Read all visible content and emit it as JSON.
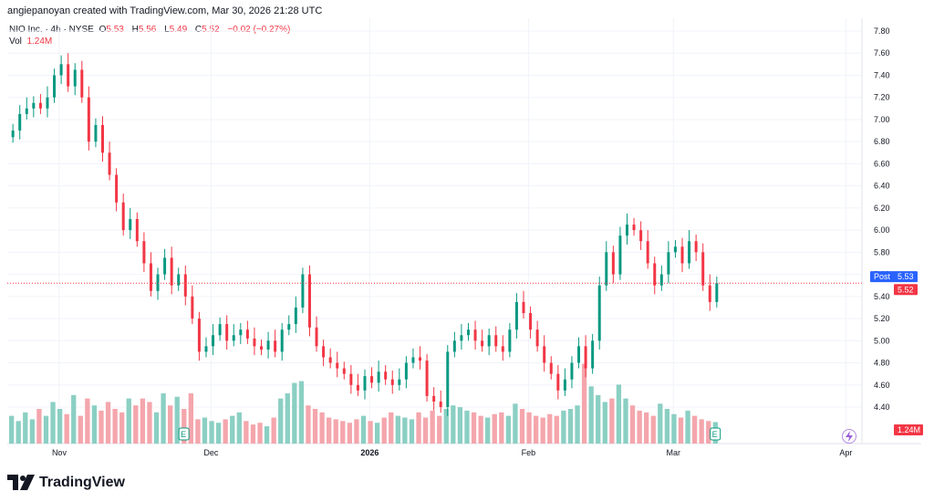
{
  "header": {
    "credit": "angiepanoyan created with TradingView.com, Mar 30, 2026 21:28 UTC"
  },
  "legend": {
    "symbol": "NIO Inc. · 4h · NYSE",
    "open_label": "O",
    "open": "5.53",
    "high_label": "H",
    "high": "5.56",
    "low_label": "L",
    "low": "5.49",
    "close_label": "C",
    "close": "5.52",
    "change": "−0.02 (−0.27%)",
    "vol_label": "Vol",
    "vol": "1.24M"
  },
  "brand": {
    "name": "TradingView"
  },
  "markers": {
    "earnings_label": "E"
  },
  "colors": {
    "up": "#089981",
    "down": "#f23645",
    "up_vol": "#8bcfc3",
    "down_vol": "#f4a6ac",
    "post": "#2962ff",
    "grid": "#f0f3fa",
    "text": "#131722"
  },
  "chart_data": {
    "type": "candlestick",
    "title": "NIO Inc. · 4h · NYSE",
    "y_ticks": [
      "7.80",
      "7.60",
      "7.40",
      "7.20",
      "7.00",
      "6.80",
      "6.60",
      "6.40",
      "6.20",
      "6.00",
      "5.80",
      "5.60",
      "5.40",
      "5.20",
      "5.00",
      "4.80",
      "4.60",
      "4.40"
    ],
    "x_labels": [
      {
        "label": "Nov",
        "i": 7
      },
      {
        "label": "Dec",
        "i": 29
      },
      {
        "label": "2026",
        "i": 52
      },
      {
        "label": "Feb",
        "i": 75
      },
      {
        "label": "Mar",
        "i": 96
      },
      {
        "label": "Apr",
        "i": 121
      }
    ],
    "ylim": [
      4.2,
      7.9
    ],
    "price_labels": [
      {
        "label": "Post",
        "value": "5.53",
        "color": "#2962ff"
      },
      {
        "label": "",
        "value": "5.52",
        "color": "#f23645"
      }
    ],
    "volume_label": "1.24M",
    "earnings_markers": [
      25,
      102
    ],
    "closes": [
      6.9,
      7.05,
      7.1,
      7.15,
      7.1,
      7.2,
      7.4,
      7.5,
      7.3,
      7.45,
      7.2,
      6.8,
      6.95,
      6.7,
      6.5,
      6.25,
      6.0,
      6.1,
      5.9,
      5.7,
      5.45,
      5.6,
      5.75,
      5.5,
      5.6,
      5.4,
      5.2,
      4.9,
      4.95,
      5.05,
      5.15,
      5.0,
      5.05,
      5.1,
      5.02,
      4.95,
      4.92,
      5.0,
      4.9,
      5.1,
      5.15,
      5.3,
      5.6,
      5.12,
      4.95,
      4.85,
      4.8,
      4.75,
      4.7,
      4.6,
      4.55,
      4.68,
      4.62,
      4.72,
      4.65,
      4.6,
      4.65,
      4.8,
      4.85,
      4.82,
      4.5,
      4.45,
      4.4,
      4.9,
      5.0,
      5.05,
      5.1,
      5.0,
      4.95,
      5.05,
      4.95,
      4.9,
      5.1,
      5.35,
      5.25,
      5.1,
      4.95,
      4.8,
      4.7,
      4.55,
      4.65,
      4.8,
      4.95,
      4.75,
      5.0,
      5.5,
      5.8,
      5.6,
      5.95,
      6.05,
      6.0,
      5.9,
      5.7,
      5.5,
      5.6,
      5.8,
      5.85,
      5.7,
      5.9,
      5.8,
      5.5,
      5.35,
      5.52
    ],
    "volumes": [
      1.6,
      1.3,
      1.8,
      1.4,
      2.0,
      1.6,
      2.4,
      2.0,
      1.7,
      2.8,
      1.6,
      2.6,
      2.2,
      1.9,
      2.4,
      2.0,
      1.8,
      2.6,
      2.2,
      2.6,
      2.4,
      1.8,
      2.9,
      2.2,
      2.7,
      2.0,
      2.9,
      1.4,
      1.5,
      1.3,
      1.2,
      1.4,
      1.6,
      1.8,
      1.3,
      1.1,
      1.2,
      1.0,
      1.5,
      2.6,
      2.9,
      3.5,
      3.6,
      2.2,
      2.0,
      1.8,
      1.5,
      1.4,
      1.3,
      1.2,
      1.4,
      1.6,
      1.3,
      1.2,
      1.5,
      1.8,
      1.6,
      1.5,
      1.4,
      1.8,
      1.5,
      1.9,
      1.6,
      2.0,
      2.2,
      2.1,
      1.9,
      1.8,
      1.6,
      1.5,
      1.7,
      1.8,
      1.6,
      2.3,
      2.0,
      1.8,
      1.6,
      1.5,
      1.7,
      1.6,
      1.9,
      2.0,
      2.2,
      4.6,
      3.3,
      2.8,
      2.4,
      2.6,
      3.4,
      2.6,
      2.2,
      1.9,
      1.8,
      1.6,
      2.3,
      2.0,
      1.7,
      1.5,
      1.9,
      1.6,
      1.4,
      1.3,
      1.24
    ]
  }
}
